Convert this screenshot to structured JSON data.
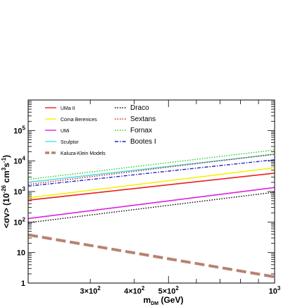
{
  "chart_data": {
    "type": "line",
    "xscale": "log",
    "yscale": "log",
    "xlim": [
      200,
      1000
    ],
    "ylim": [
      1,
      1000000
    ],
    "xlabel": "m_DM (GeV)",
    "ylabel": "<σv> (10^-26 cm^3 s^-1)",
    "x_tick_labels": [
      {
        "value": 300,
        "mant": "3",
        "exp": "2"
      },
      {
        "value": 400,
        "mant": "4",
        "exp": "2"
      },
      {
        "value": 500,
        "mant": "5",
        "exp": "2"
      },
      {
        "value": 1000,
        "mant": "10",
        "exp": "3",
        "plain": true
      }
    ],
    "y_tick_labels": [
      {
        "value": 1,
        "text": "1"
      },
      {
        "value": 10,
        "text": "10"
      },
      {
        "value": 100,
        "base": "10",
        "exp": "2"
      },
      {
        "value": 1000,
        "base": "10",
        "exp": "3"
      },
      {
        "value": 10000,
        "base": "10",
        "exp": "4"
      },
      {
        "value": 100000,
        "base": "10",
        "exp": "5"
      }
    ],
    "grid": false,
    "legend_position": "top-left",
    "series": [
      {
        "name": "UMa II",
        "color": "#e8201c",
        "dash": "solid",
        "width": 1.6,
        "x": [
          200,
          1000
        ],
        "y": [
          520,
          4000
        ],
        "legend_col": 0,
        "legend_row": 0
      },
      {
        "name": "Coma Berenices",
        "color": "#f5f000",
        "dash": "solid",
        "width": 1.6,
        "x": [
          200,
          1000
        ],
        "y": [
          620,
          6000
        ],
        "legend_col": 0,
        "legend_row": 1
      },
      {
        "name": "UMi",
        "color": "#e020e0",
        "dash": "solid",
        "width": 1.6,
        "x": [
          200,
          1000
        ],
        "y": [
          130,
          1350
        ],
        "legend_col": 0,
        "legend_row": 2
      },
      {
        "name": "Sculptor",
        "color": "#4fe0e0",
        "dash": "solid",
        "width": 1.6,
        "x": [
          200,
          1000
        ],
        "y": [
          2000,
          16500
        ],
        "legend_col": 0,
        "legend_row": 3
      },
      {
        "name": "Draco",
        "color": "#000000",
        "dash": "dot",
        "width": 1.4,
        "x": [
          200,
          1000
        ],
        "y": [
          95,
          950
        ],
        "legend_col": 1,
        "legend_row": 0
      },
      {
        "name": "Sextans",
        "color": "#cc2020",
        "dash": "dot",
        "width": 1.4,
        "x": [
          200,
          1000
        ],
        "y": [
          1700,
          17000
        ],
        "legend_col": 1,
        "legend_row": 1
      },
      {
        "name": "Fornax",
        "color": "#22cc22",
        "dash": "dot",
        "width": 1.4,
        "x": [
          200,
          1000
        ],
        "y": [
          2500,
          23000
        ],
        "legend_col": 1,
        "legend_row": 2
      },
      {
        "name": "Bootes I",
        "color": "#2222cc",
        "dash": "dashdot",
        "width": 1.4,
        "x": [
          200,
          1000
        ],
        "y": [
          1500,
          11000
        ],
        "legend_col": 1,
        "legend_row": 3
      },
      {
        "name": "Kaluza-Klein Models",
        "color": "#b88270",
        "dash": "longdash",
        "width": 4,
        "x": [
          200,
          1000
        ],
        "y": [
          38,
          1.6
        ],
        "legend_col": 0,
        "legend_row": 4
      }
    ]
  }
}
